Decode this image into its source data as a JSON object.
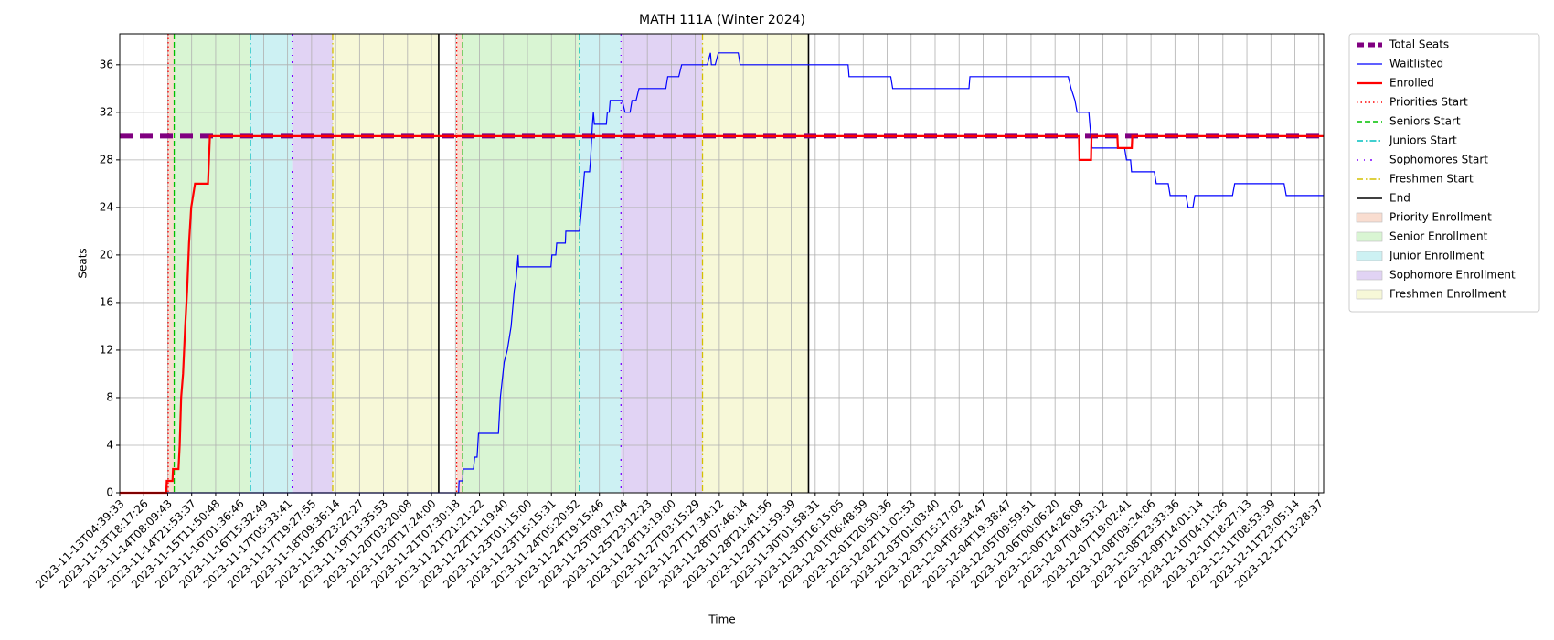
{
  "chart_data": {
    "type": "line",
    "title": "MATH 111A (Winter 2024)",
    "xlabel": "Time",
    "ylabel": "Seats",
    "grid": true,
    "legend": "outside right",
    "xlim": [
      0,
      50.2
    ],
    "ylim": [
      0,
      38.6
    ],
    "yticks": [
      0,
      4,
      8,
      12,
      16,
      20,
      24,
      28,
      32,
      36
    ],
    "xticks": [
      {
        "value": 0,
        "label": "2023-11-13T04:39:33"
      },
      {
        "value": 1,
        "label": "2023-11-13T18:17:26"
      },
      {
        "value": 2,
        "label": "2023-11-14T08:09:43"
      },
      {
        "value": 3,
        "label": "2023-11-14T21:53:37"
      },
      {
        "value": 4,
        "label": "2023-11-15T11:50:48"
      },
      {
        "value": 5,
        "label": "2023-11-16T01:36:46"
      },
      {
        "value": 6,
        "label": "2023-11-16T15:32:49"
      },
      {
        "value": 7,
        "label": "2023-11-17T05:33:41"
      },
      {
        "value": 8,
        "label": "2023-11-17T19:27:55"
      },
      {
        "value": 9,
        "label": "2023-11-18T09:36:14"
      },
      {
        "value": 10,
        "label": "2023-11-18T23:22:27"
      },
      {
        "value": 11,
        "label": "2023-11-19T13:35:53"
      },
      {
        "value": 12,
        "label": "2023-11-20T03:20:08"
      },
      {
        "value": 13,
        "label": "2023-11-20T17:24:00"
      },
      {
        "value": 14,
        "label": "2023-11-21T07:30:18"
      },
      {
        "value": 15,
        "label": "2023-11-21T21:21:22"
      },
      {
        "value": 16,
        "label": "2023-11-22T11:19:40"
      },
      {
        "value": 17,
        "label": "2023-11-23T01:15:00"
      },
      {
        "value": 18,
        "label": "2023-11-23T15:15:31"
      },
      {
        "value": 19,
        "label": "2023-11-24T05:20:52"
      },
      {
        "value": 20,
        "label": "2023-11-24T19:15:46"
      },
      {
        "value": 21,
        "label": "2023-11-25T09:17:04"
      },
      {
        "value": 22,
        "label": "2023-11-25T23:12:23"
      },
      {
        "value": 23,
        "label": "2023-11-26T13:19:00"
      },
      {
        "value": 24,
        "label": "2023-11-27T03:15:29"
      },
      {
        "value": 25,
        "label": "2023-11-27T17:34:12"
      },
      {
        "value": 26,
        "label": "2023-11-28T07:46:14"
      },
      {
        "value": 27,
        "label": "2023-11-28T21:41:56"
      },
      {
        "value": 28,
        "label": "2023-11-29T11:59:39"
      },
      {
        "value": 29,
        "label": "2023-11-30T01:58:31"
      },
      {
        "value": 30,
        "label": "2023-11-30T16:15:05"
      },
      {
        "value": 31,
        "label": "2023-12-01T06:48:59"
      },
      {
        "value": 32,
        "label": "2023-12-01T20:50:36"
      },
      {
        "value": 33,
        "label": "2023-12-02T11:02:53"
      },
      {
        "value": 34,
        "label": "2023-12-03T01:03:40"
      },
      {
        "value": 35,
        "label": "2023-12-03T15:17:02"
      },
      {
        "value": 36,
        "label": "2023-12-04T05:34:47"
      },
      {
        "value": 37,
        "label": "2023-12-04T19:38:47"
      },
      {
        "value": 38,
        "label": "2023-12-05T09:59:51"
      },
      {
        "value": 39,
        "label": "2023-12-06T00:06:20"
      },
      {
        "value": 40,
        "label": "2023-12-06T14:26:08"
      },
      {
        "value": 41,
        "label": "2023-12-07T04:53:12"
      },
      {
        "value": 42,
        "label": "2023-12-07T19:02:41"
      },
      {
        "value": 43,
        "label": "2023-12-08T09:24:06"
      },
      {
        "value": 44,
        "label": "2023-12-08T23:33:36"
      },
      {
        "value": 45,
        "label": "2023-12-09T14:01:14"
      },
      {
        "value": 46,
        "label": "2023-12-10T04:11:26"
      },
      {
        "value": 47,
        "label": "2023-12-10T18:27:13"
      },
      {
        "value": 48,
        "label": "2023-12-11T08:53:39"
      },
      {
        "value": 49,
        "label": "2023-12-11T23:05:14"
      },
      {
        "value": 50,
        "label": "2023-12-12T13:28:37"
      }
    ],
    "spans": [
      {
        "name": "Priority Enrollment",
        "color": "#f9ddd0",
        "ranges": [
          [
            2.02,
            2.27
          ],
          [
            14.05,
            14.3
          ]
        ]
      },
      {
        "name": "Senior Enrollment",
        "color": "#d9f5d3",
        "ranges": [
          [
            2.27,
            5.45
          ],
          [
            14.3,
            19.17
          ]
        ]
      },
      {
        "name": "Junior Enrollment",
        "color": "#cdf1f3",
        "ranges": [
          [
            5.45,
            7.19
          ],
          [
            19.17,
            20.9
          ]
        ]
      },
      {
        "name": "Sophomore Enrollment",
        "color": "#e1d3f4",
        "ranges": [
          [
            7.19,
            8.88
          ],
          [
            20.9,
            24.3
          ]
        ]
      },
      {
        "name": "Freshmen Enrollment",
        "color": "#f7f8d8",
        "ranges": [
          [
            8.88,
            13.3
          ],
          [
            24.3,
            28.72
          ]
        ]
      }
    ],
    "series": [
      {
        "name": "Total Seats",
        "color": "#800080",
        "style": "dashed",
        "width": 5,
        "x": [
          0,
          50.2
        ],
        "values": [
          30,
          30
        ]
      },
      {
        "name": "Waitlisted",
        "color": "#0000ff",
        "style": "solid",
        "width": 1.2,
        "x": [
          0,
          14.13,
          14.15,
          14.3,
          14.32,
          14.75,
          14.8,
          14.9,
          14.96,
          15.79,
          15.87,
          16.03,
          16.16,
          16.32,
          16.45,
          16.53,
          16.61,
          16.63,
          17.98,
          18.02,
          18.18,
          18.22,
          18.58,
          18.6,
          19.17,
          19.26,
          19.38,
          19.59,
          19.63,
          19.71,
          19.75,
          19.79,
          20.29,
          20.33,
          20.41,
          20.45,
          20.95,
          21.07,
          21.28,
          21.36,
          21.53,
          21.65,
          22.77,
          22.85,
          23.31,
          23.43,
          24.5,
          24.63,
          24.67,
          24.83,
          24.96,
          25.79,
          25.87,
          30.37,
          30.41,
          32.15,
          32.23,
          35.41,
          35.45,
          39.55,
          39.67,
          39.83,
          39.92,
          40.41,
          40.45,
          40.54,
          41.9,
          41.98,
          42.15,
          42.19,
          43.14,
          43.22,
          43.72,
          43.8,
          44.46,
          44.55,
          44.75,
          44.83,
          46.4,
          46.49,
          48.55,
          48.64,
          50.2
        ],
        "values": [
          0,
          0,
          1,
          1,
          2,
          2,
          3,
          3,
          5,
          5,
          8,
          11,
          12,
          14,
          17,
          18,
          20,
          19,
          19,
          20,
          20,
          21,
          21,
          22,
          22,
          24,
          27,
          27,
          28,
          31,
          32,
          31,
          31,
          32,
          32,
          33,
          33,
          32,
          32,
          33,
          33,
          34,
          34,
          35,
          35,
          36,
          36,
          37,
          36,
          36,
          37,
          37,
          36,
          36,
          35,
          35,
          34,
          34,
          35,
          35,
          34,
          33,
          32,
          32,
          31,
          29,
          29,
          28,
          28,
          27,
          27,
          26,
          26,
          25,
          25,
          24,
          24,
          25,
          25,
          26,
          26,
          25,
          25
        ]
      },
      {
        "name": "Enrolled",
        "color": "#ff0000",
        "style": "solid",
        "width": 2.2,
        "x": [
          0,
          1.94,
          1.96,
          2.2,
          2.22,
          2.45,
          2.5,
          2.56,
          2.64,
          2.73,
          2.81,
          2.89,
          2.98,
          3.06,
          3.14,
          3.68,
          3.72,
          3.76,
          40.0,
          40.02,
          40.5,
          40.52,
          41.6,
          41.62,
          42.2,
          42.22,
          50.2
        ],
        "values": [
          0,
          0,
          1,
          1,
          2,
          2,
          4,
          8,
          10,
          14,
          17,
          21,
          24,
          25,
          26,
          26,
          28,
          30,
          30,
          28,
          28,
          30,
          30,
          29,
          29,
          30,
          30
        ]
      }
    ],
    "vlines": [
      {
        "name": "Priorities Start",
        "color": "#ff0000",
        "style": "dotted",
        "x": [
          2.02,
          14.05
        ]
      },
      {
        "name": "Seniors Start",
        "color": "#00c000",
        "style": "dashed",
        "x": [
          2.27,
          14.3
        ]
      },
      {
        "name": "Juniors Start",
        "color": "#00bfbf",
        "style": "dashdot",
        "x": [
          5.45,
          19.17
        ]
      },
      {
        "name": "Sophomores Start",
        "color": "#7f00ff",
        "style": "dashdotsparse",
        "x": [
          7.19,
          20.9
        ]
      },
      {
        "name": "Freshmen Start",
        "color": "#d4c000",
        "style": "dashdot",
        "x": [
          8.88,
          24.3
        ]
      },
      {
        "name": "End",
        "color": "#000000",
        "style": "solid",
        "x": [
          13.3,
          28.72
        ]
      }
    ]
  }
}
